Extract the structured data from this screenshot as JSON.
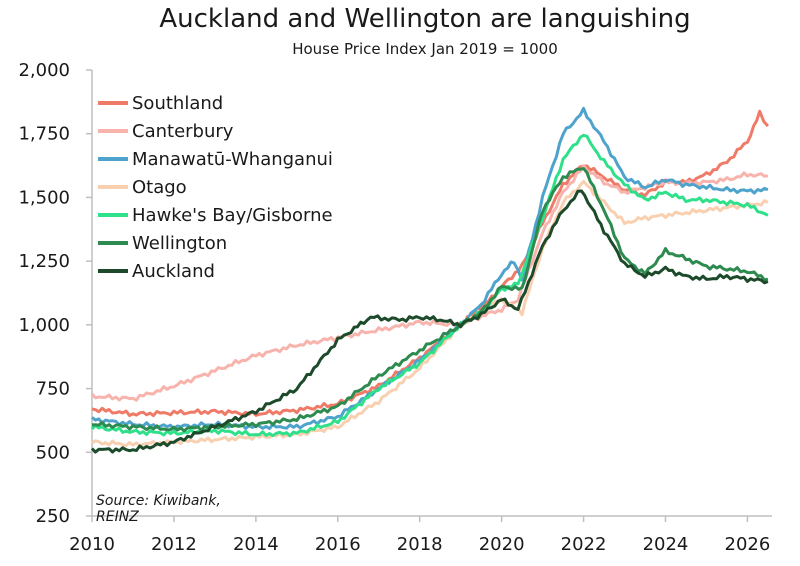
{
  "chart_data": {
    "type": "line",
    "title": "Auckland and Wellington are languishing",
    "subtitle": "House Price Index Jan 2019 = 1000",
    "source": "Source: Kiwibank, REINZ",
    "source_lines": [
      "Source: Kiwibank,",
      "REINZ"
    ],
    "xlim": [
      2010,
      2026.6
    ],
    "ylim": [
      250,
      2000
    ],
    "xticks": [
      2010,
      2012,
      2014,
      2016,
      2018,
      2020,
      2022,
      2024,
      2026
    ],
    "yticks": [
      250,
      500,
      750,
      1000,
      1250,
      1500,
      1750,
      2000
    ],
    "ytick_labels": [
      "250",
      "500",
      "750",
      "1,000",
      "1,250",
      "1,500",
      "1,750",
      "2,000"
    ],
    "legend_position": "top-left",
    "series": [
      {
        "name": "Southland",
        "color": "#f07a68",
        "width": 3,
        "points": [
          [
            2010,
            670
          ],
          [
            2011,
            650
          ],
          [
            2012,
            655
          ],
          [
            2013,
            660
          ],
          [
            2014,
            650
          ],
          [
            2015,
            665
          ],
          [
            2016,
            690
          ],
          [
            2017,
            760
          ],
          [
            2018,
            870
          ],
          [
            2019,
            1000
          ],
          [
            2019.6,
            1080
          ],
          [
            2020,
            1150
          ],
          [
            2020.5,
            1230
          ],
          [
            2021,
            1400
          ],
          [
            2021.5,
            1550
          ],
          [
            2022,
            1630
          ],
          [
            2022.5,
            1580
          ],
          [
            2023,
            1530
          ],
          [
            2023.5,
            1510
          ],
          [
            2024,
            1560
          ],
          [
            2024.5,
            1560
          ],
          [
            2025,
            1590
          ],
          [
            2025.5,
            1640
          ],
          [
            2026,
            1720
          ],
          [
            2026.3,
            1830
          ],
          [
            2026.5,
            1780
          ]
        ]
      },
      {
        "name": "Canterbury",
        "color": "#f7b3ac",
        "width": 3,
        "points": [
          [
            2010,
            720
          ],
          [
            2011,
            710
          ],
          [
            2012,
            760
          ],
          [
            2013,
            820
          ],
          [
            2014,
            880
          ],
          [
            2015,
            920
          ],
          [
            2016,
            950
          ],
          [
            2017,
            980
          ],
          [
            2018,
            1010
          ],
          [
            2019,
            1000
          ],
          [
            2019.6,
            1040
          ],
          [
            2020,
            1060
          ],
          [
            2020.4,
            1100
          ],
          [
            2021,
            1360
          ],
          [
            2021.5,
            1520
          ],
          [
            2022,
            1620
          ],
          [
            2022.5,
            1560
          ],
          [
            2023,
            1520
          ],
          [
            2023.5,
            1540
          ],
          [
            2024,
            1560
          ],
          [
            2024.5,
            1555
          ],
          [
            2025,
            1560
          ],
          [
            2025.5,
            1570
          ],
          [
            2026,
            1590
          ],
          [
            2026.5,
            1585
          ]
        ]
      },
      {
        "name": "Manawatū-Whanganui",
        "color": "#4ea3cc",
        "width": 3,
        "points": [
          [
            2010,
            630
          ],
          [
            2011,
            610
          ],
          [
            2012,
            600
          ],
          [
            2013,
            610
          ],
          [
            2014,
            600
          ],
          [
            2015,
            600
          ],
          [
            2016,
            640
          ],
          [
            2017,
            750
          ],
          [
            2018,
            860
          ],
          [
            2019,
            1000
          ],
          [
            2019.5,
            1080
          ],
          [
            2020,
            1200
          ],
          [
            2020.3,
            1250
          ],
          [
            2020.5,
            1180
          ],
          [
            2021,
            1500
          ],
          [
            2021.5,
            1750
          ],
          [
            2022,
            1840
          ],
          [
            2022.5,
            1720
          ],
          [
            2023,
            1580
          ],
          [
            2023.5,
            1540
          ],
          [
            2024,
            1570
          ],
          [
            2024.5,
            1550
          ],
          [
            2025,
            1540
          ],
          [
            2025.5,
            1530
          ],
          [
            2026,
            1525
          ],
          [
            2026.5,
            1530
          ]
        ]
      },
      {
        "name": "Otago",
        "color": "#f8cfaf",
        "width": 3,
        "points": [
          [
            2010,
            540
          ],
          [
            2011,
            530
          ],
          [
            2012,
            540
          ],
          [
            2013,
            550
          ],
          [
            2014,
            560
          ],
          [
            2015,
            570
          ],
          [
            2016,
            600
          ],
          [
            2017,
            700
          ],
          [
            2018,
            830
          ],
          [
            2019,
            1000
          ],
          [
            2019.6,
            1060
          ],
          [
            2020,
            1100
          ],
          [
            2020.5,
            1050
          ],
          [
            2021,
            1300
          ],
          [
            2021.5,
            1480
          ],
          [
            2022,
            1560
          ],
          [
            2022.5,
            1480
          ],
          [
            2023,
            1400
          ],
          [
            2023.5,
            1420
          ],
          [
            2024,
            1430
          ],
          [
            2024.5,
            1440
          ],
          [
            2025,
            1450
          ],
          [
            2025.5,
            1460
          ],
          [
            2026,
            1470
          ],
          [
            2026.5,
            1480
          ]
        ]
      },
      {
        "name": "Hawke's Bay/Gisborne",
        "color": "#2ee08a",
        "width": 3,
        "points": [
          [
            2010,
            600
          ],
          [
            2011,
            580
          ],
          [
            2012,
            575
          ],
          [
            2013,
            585
          ],
          [
            2014,
            570
          ],
          [
            2015,
            575
          ],
          [
            2016,
            620
          ],
          [
            2017,
            750
          ],
          [
            2018,
            850
          ],
          [
            2019,
            1000
          ],
          [
            2019.5,
            1050
          ],
          [
            2020,
            1140
          ],
          [
            2020.4,
            1160
          ],
          [
            2021,
            1420
          ],
          [
            2021.5,
            1650
          ],
          [
            2022,
            1750
          ],
          [
            2022.5,
            1640
          ],
          [
            2023,
            1550
          ],
          [
            2023.5,
            1490
          ],
          [
            2024,
            1520
          ],
          [
            2024.5,
            1490
          ],
          [
            2025,
            1490
          ],
          [
            2025.5,
            1480
          ],
          [
            2026,
            1470
          ],
          [
            2026.5,
            1430
          ]
        ]
      },
      {
        "name": "Wellington",
        "color": "#2e8b4f",
        "width": 3,
        "points": [
          [
            2010,
            610
          ],
          [
            2011,
            600
          ],
          [
            2012,
            590
          ],
          [
            2013,
            600
          ],
          [
            2014,
            610
          ],
          [
            2015,
            630
          ],
          [
            2016,
            680
          ],
          [
            2017,
            800
          ],
          [
            2018,
            900
          ],
          [
            2019,
            1000
          ],
          [
            2019.5,
            1050
          ],
          [
            2020,
            1150
          ],
          [
            2020.5,
            1140
          ],
          [
            2021,
            1450
          ],
          [
            2021.5,
            1580
          ],
          [
            2022,
            1620
          ],
          [
            2022.5,
            1450
          ],
          [
            2023,
            1260
          ],
          [
            2023.5,
            1200
          ],
          [
            2024,
            1290
          ],
          [
            2024.5,
            1260
          ],
          [
            2025,
            1230
          ],
          [
            2025.5,
            1220
          ],
          [
            2026,
            1210
          ],
          [
            2026.5,
            1180
          ]
        ]
      },
      {
        "name": "Auckland",
        "color": "#1c4a2a",
        "width": 3,
        "points": [
          [
            2010,
            510
          ],
          [
            2011,
            510
          ],
          [
            2012,
            540
          ],
          [
            2013,
            600
          ],
          [
            2014,
            660
          ],
          [
            2015,
            750
          ],
          [
            2016,
            940
          ],
          [
            2016.8,
            1030
          ],
          [
            2017.5,
            1020
          ],
          [
            2018,
            1030
          ],
          [
            2018.5,
            1020
          ],
          [
            2019,
            1000
          ],
          [
            2019.5,
            1040
          ],
          [
            2020,
            1100
          ],
          [
            2020.4,
            1060
          ],
          [
            2021,
            1310
          ],
          [
            2021.5,
            1450
          ],
          [
            2021.95,
            1530
          ],
          [
            2022.5,
            1370
          ],
          [
            2023,
            1240
          ],
          [
            2023.5,
            1190
          ],
          [
            2024,
            1220
          ],
          [
            2024.5,
            1190
          ],
          [
            2025,
            1180
          ],
          [
            2025.5,
            1190
          ],
          [
            2026,
            1180
          ],
          [
            2026.5,
            1170
          ]
        ]
      }
    ]
  }
}
